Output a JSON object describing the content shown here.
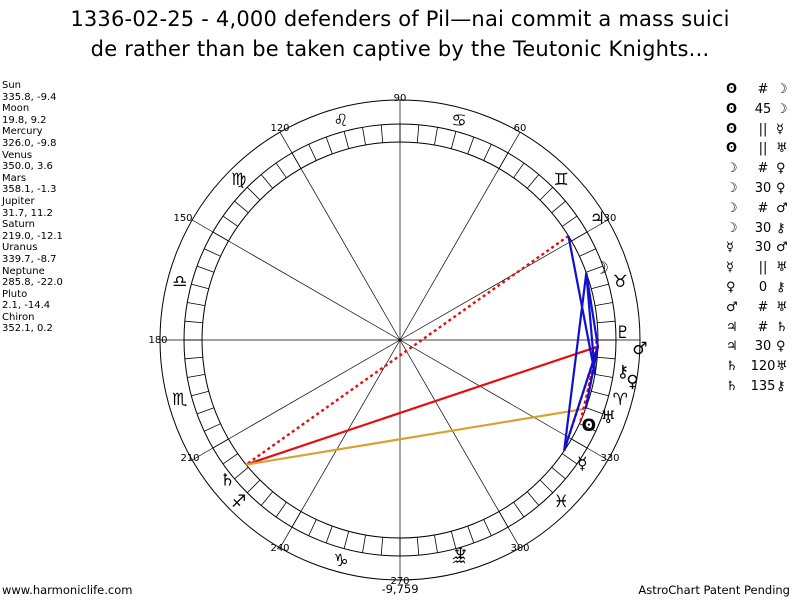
{
  "title_line1": "1336-02-25 - 4,000 defenders of Pil—nai commit a mass suici",
  "title_line2": "de rather than be taken captive by the Teutonic Knights...",
  "planets": [
    {
      "name": "Sun",
      "coords": "335.8, -9.4"
    },
    {
      "name": "Moon",
      "coords": "19.8, 9.2"
    },
    {
      "name": "Mercury",
      "coords": "326.0, -9.8"
    },
    {
      "name": "Venus",
      "coords": "350.0, 3.6"
    },
    {
      "name": "Mars",
      "coords": "358.1, -1.3"
    },
    {
      "name": "Jupiter",
      "coords": "31.7, 11.2"
    },
    {
      "name": "Saturn",
      "coords": "219.0, -12.1"
    },
    {
      "name": "Uranus",
      "coords": "339.7, -8.7"
    },
    {
      "name": "Neptune",
      "coords": "285.8, -22.0"
    },
    {
      "name": "Pluto",
      "coords": "2.1, -14.4"
    },
    {
      "name": "Chiron",
      "coords": "352.1, 0.2"
    }
  ],
  "aspects": [
    {
      "g1": "ʘ",
      "sym": "#",
      "g2": "☽"
    },
    {
      "g1": "ʘ",
      "sym": "45",
      "g2": "☽"
    },
    {
      "g1": "ʘ",
      "sym": "||",
      "g2": "☿"
    },
    {
      "g1": "ʘ",
      "sym": "||",
      "g2": "♅"
    },
    {
      "g1": "☽",
      "sym": "#",
      "g2": "♀"
    },
    {
      "g1": "☽",
      "sym": "30",
      "g2": "♀"
    },
    {
      "g1": "☽",
      "sym": "#",
      "g2": "♂"
    },
    {
      "g1": "☽",
      "sym": "30",
      "g2": "⚷"
    },
    {
      "g1": "☿",
      "sym": "30",
      "g2": "♂"
    },
    {
      "g1": "☿",
      "sym": "||",
      "g2": "♅"
    },
    {
      "g1": "♀",
      "sym": "0",
      "g2": "⚷"
    },
    {
      "g1": "♂",
      "sym": "#",
      "g2": "♅"
    },
    {
      "g1": "♃",
      "sym": "#",
      "g2": "♄"
    },
    {
      "g1": "♃",
      "sym": "30",
      "g2": "♀"
    },
    {
      "g1": "♄",
      "sym": "120",
      "g2": "♅"
    },
    {
      "g1": "♄",
      "sym": "135",
      "g2": "⚷"
    }
  ],
  "degree_labels": [
    "90",
    "60",
    "30",
    "330",
    "300",
    "270",
    "240",
    "210",
    "180",
    "150",
    "120"
  ],
  "zodiac_glyphs": [
    "♈",
    "♉",
    "♊",
    "♋",
    "♌",
    "♍",
    "♎",
    "♏",
    "♐",
    "♑",
    "♒",
    "♓"
  ],
  "planet_glyphs": {
    "sun": "ʘ",
    "moon": "☽",
    "mercury": "☿",
    "venus": "♀",
    "mars": "♂",
    "jupiter": "♃",
    "saturn": "♄",
    "uranus": "♅",
    "neptune": "♆",
    "pluto": "♇",
    "chiron": "⚷"
  },
  "colors": {
    "blue": "#1010d0",
    "red": "#e01010",
    "orange": "#daa030"
  },
  "footer_left": "www.harmoniclife.com",
  "footer_center": "-9,759",
  "footer_right": "AstroChart Patent Pending"
}
